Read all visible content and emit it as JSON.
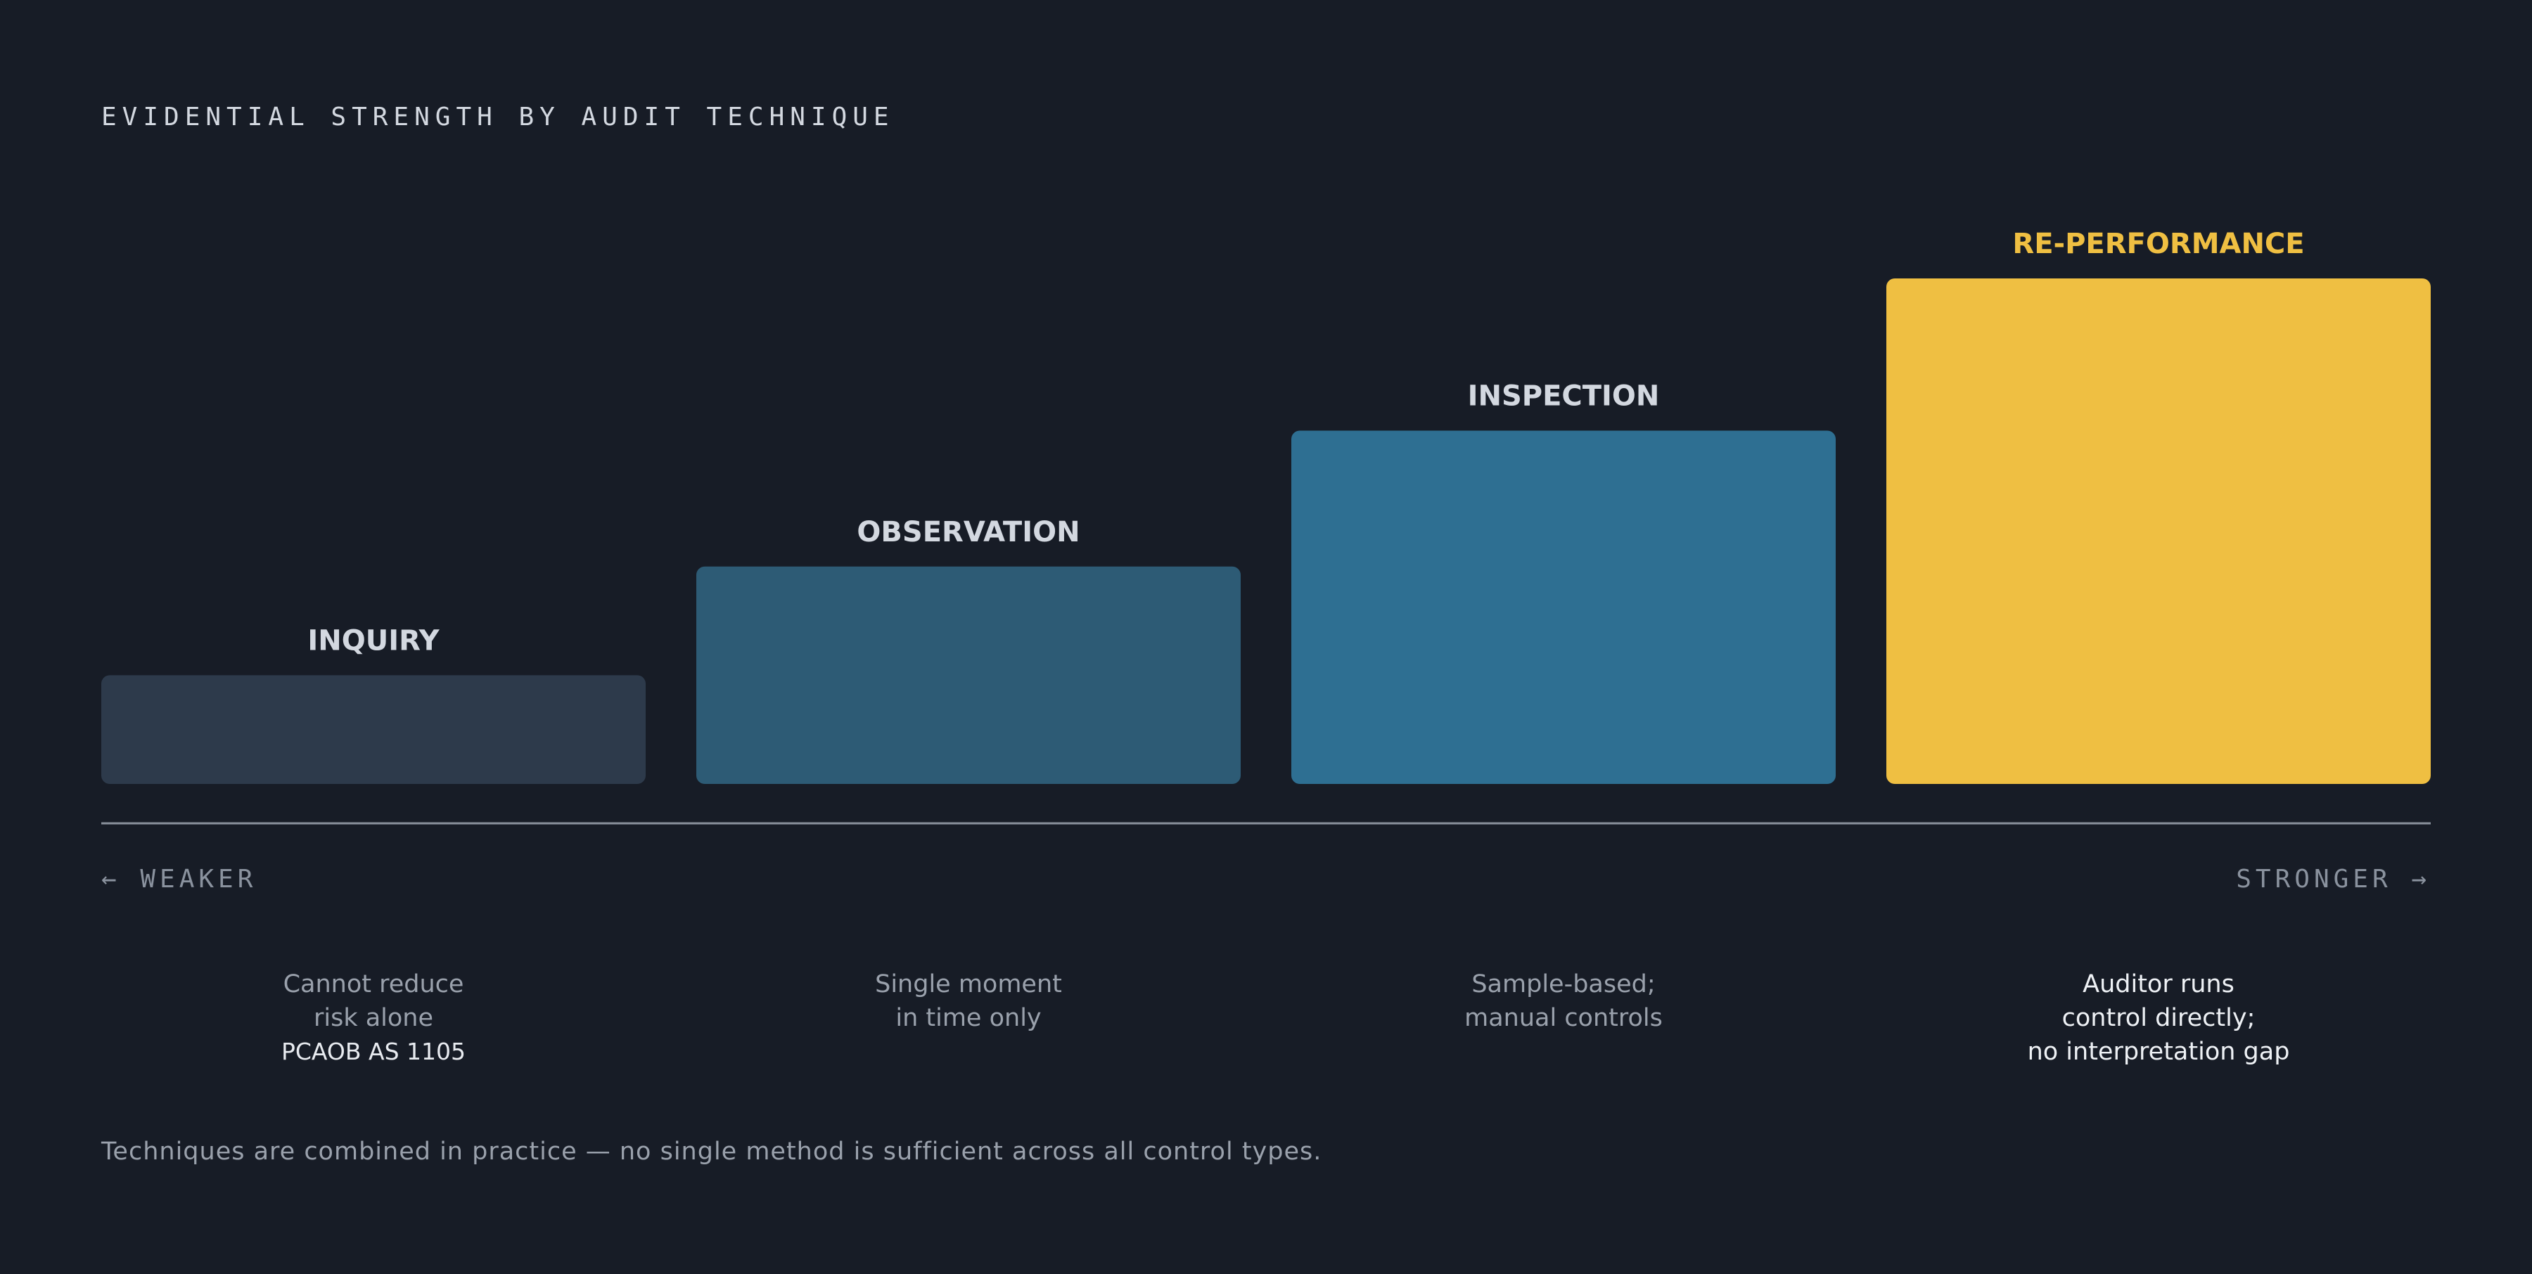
{
  "title": "EVIDENTIAL STRENGTH BY AUDIT TECHNIQUE",
  "chart_data": {
    "type": "bar",
    "title": "EVIDENTIAL STRENGTH BY AUDIT TECHNIQUE",
    "categories": [
      "INQUIRY",
      "OBSERVATION",
      "INSPECTION",
      "RE-PERFORMANCE"
    ],
    "values": [
      1,
      2,
      3.25,
      4.65
    ],
    "ylim": [
      0,
      4.65
    ],
    "grid": false,
    "axis_left_label": "← WEAKER",
    "axis_right_label": "STRONGER →",
    "colors": [
      "#2d3a4b",
      "#2d5b75",
      "#2e6f92",
      "#efbf42"
    ],
    "label_colors": [
      "#d3d8e0",
      "#d3d8e0",
      "#d3d8e0",
      "#efbf42"
    ]
  },
  "descriptions": [
    {
      "lines": [
        "Cannot reduce",
        "risk alone"
      ],
      "ref": "PCAOB AS 1105"
    },
    {
      "lines": [
        "Single moment",
        "in time only"
      ]
    },
    {
      "lines": [
        "Sample-based;",
        "manual controls"
      ]
    },
    {
      "lines": [
        "Auditor runs",
        "control directly;",
        "no interpretation gap"
      ]
    }
  ],
  "footnote": "Techniques are combined in practice — no single method is sufficient across all control types."
}
